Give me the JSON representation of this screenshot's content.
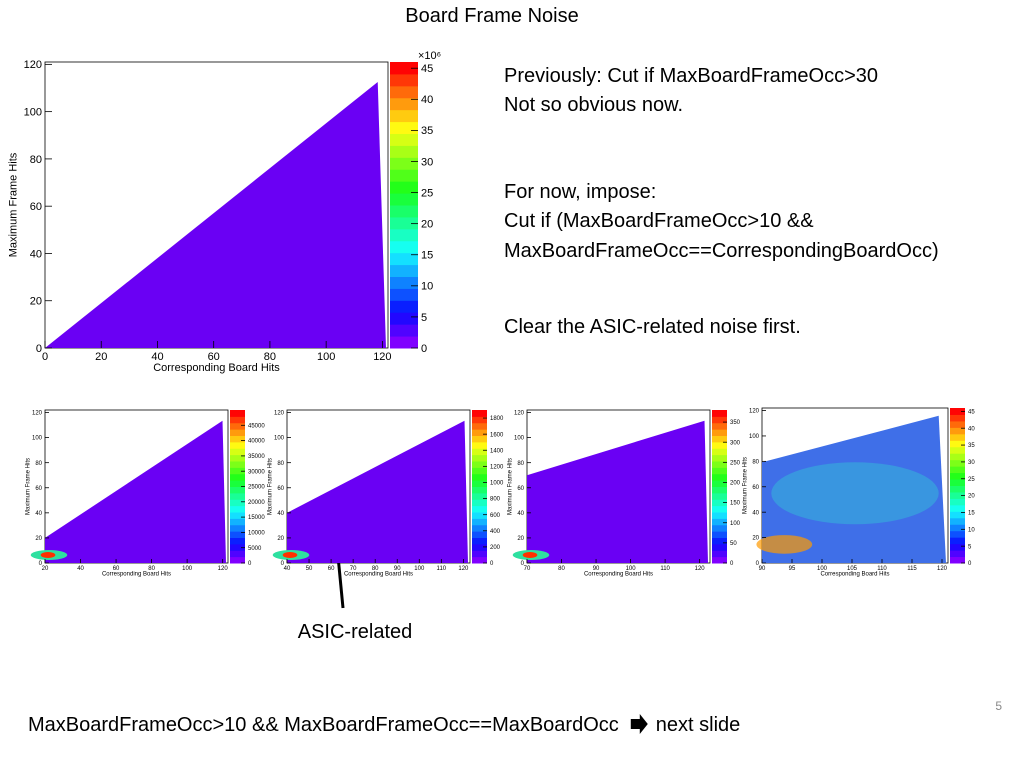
{
  "title": "Board Frame Noise",
  "notes": [
    "Previously: Cut if MaxBoardFrameOcc>30",
    "Not so obvious now.",
    "For now, impose:",
    "Cut if (MaxBoardFrameOcc>10 &&",
    "MaxBoardFrameOcc==CorrespondingBoardOcc)",
    "Clear the ASIC-related noise first."
  ],
  "annotation": "ASIC-related",
  "footer": {
    "text": "MaxBoardFrameOcc>10 && MaxBoardFrameOcc==MaxBoardOcc",
    "link": "next slide"
  },
  "page_number": 5,
  "charts": [
    {
      "type": "heatmap",
      "x_label": "Corresponding Board Hits",
      "y_label": "Maximum Frame Hits",
      "xlim": [
        0,
        122
      ],
      "xticks": [
        0,
        20,
        40,
        60,
        80,
        100,
        120
      ],
      "ylim": [
        0,
        121
      ],
      "yticks": [
        0,
        20,
        40,
        60,
        80,
        100,
        120
      ],
      "zlim": [
        0,
        46
      ],
      "zticks": [
        0,
        5,
        10,
        15,
        20,
        25,
        30,
        35,
        40,
        45
      ],
      "z_multiplier": "×10⁶"
    },
    {
      "type": "heatmap",
      "x_label": "Corresponding Board Hits",
      "y_label": "Maximum Frame Hits",
      "xlim": [
        20,
        123
      ],
      "xticks": [
        20,
        40,
        60,
        80,
        100,
        120
      ],
      "ylim": [
        0,
        122
      ],
      "yticks": [
        0,
        20,
        40,
        60,
        80,
        100,
        120
      ],
      "zlim": [
        0,
        50000
      ],
      "zticks": [
        0,
        5000,
        10000,
        15000,
        20000,
        25000,
        30000,
        35000,
        40000,
        45000
      ]
    },
    {
      "type": "heatmap",
      "x_label": "Corresponding Board Hits",
      "y_label": "Maximum Frame Hits",
      "xlim": [
        40,
        123
      ],
      "xticks": [
        40,
        50,
        60,
        70,
        80,
        90,
        100,
        110,
        120
      ],
      "ylim": [
        0,
        122
      ],
      "yticks": [
        0,
        20,
        40,
        60,
        80,
        100,
        120
      ],
      "zlim": [
        0,
        1900
      ],
      "zticks": [
        0,
        200,
        400,
        600,
        800,
        1000,
        1200,
        1400,
        1600,
        1800
      ]
    },
    {
      "type": "heatmap",
      "x_label": "Corresponding Board Hits",
      "y_label": "Maximum Frame Hits",
      "xlim": [
        70,
        123
      ],
      "xticks": [
        70,
        80,
        90,
        100,
        110,
        120
      ],
      "ylim": [
        0,
        122
      ],
      "yticks": [
        0,
        20,
        40,
        60,
        80,
        100,
        120
      ],
      "zlim": [
        0,
        380
      ],
      "zticks": [
        0,
        50,
        100,
        150,
        200,
        250,
        300,
        350
      ]
    },
    {
      "type": "heatmap",
      "x_label": "Corresponding Board Hits",
      "y_label": "Maximum Frame Hits",
      "xlim": [
        90,
        121
      ],
      "xticks": [
        90,
        95,
        100,
        105,
        110,
        115,
        120
      ],
      "ylim": [
        0,
        122
      ],
      "yticks": [
        0,
        20,
        40,
        60,
        80,
        100,
        120
      ],
      "zlim": [
        0,
        46
      ],
      "zticks": [
        0,
        5,
        10,
        15,
        20,
        25,
        30,
        35,
        40,
        45
      ]
    }
  ]
}
